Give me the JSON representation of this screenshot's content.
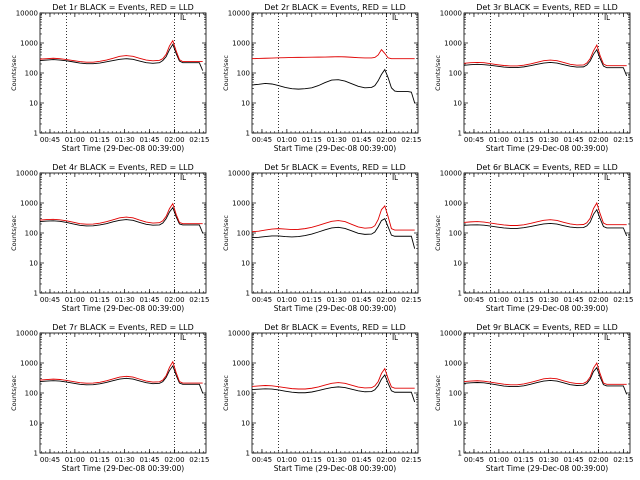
{
  "colors": {
    "events": "#000000",
    "lld": "#e00000",
    "axes": "#000000",
    "background": "#ffffff"
  },
  "common": {
    "ylabel": "Counts/sec",
    "xlabel": "Start Time (29-Dec-08 00:39:00)",
    "x_tick_labels": [
      "00:45",
      "01:00",
      "01:15",
      "01:30",
      "01:45",
      "02:00",
      "02:15"
    ],
    "x_ticks_min": [
      6,
      21,
      36,
      51,
      66,
      81,
      96
    ],
    "x_range_min": [
      0,
      100
    ],
    "y_tick_labels": [
      "1",
      "10",
      "100",
      "1000",
      "10000"
    ],
    "y_ticks": [
      1,
      10,
      100,
      1000,
      10000
    ],
    "y_range": [
      1,
      10000
    ],
    "y_scale": "log",
    "dotted_vlines_min": [
      16,
      81
    ],
    "marker_label": "L",
    "marker_min": 85
  },
  "chart_data": [
    {
      "type": "line",
      "title": "Det 1r BLACK = Events, RED = LLD",
      "x": [
        0,
        4,
        8,
        12,
        16,
        20,
        24,
        28,
        32,
        36,
        40,
        44,
        48,
        52,
        56,
        60,
        64,
        68,
        72,
        74,
        76,
        78,
        80,
        82,
        84,
        86,
        88,
        90,
        92,
        94,
        96,
        98
      ],
      "series": [
        {
          "values": [
            260,
            270,
            280,
            270,
            255,
            235,
            215,
            205,
            205,
            215,
            235,
            260,
            285,
            300,
            285,
            250,
            220,
            210,
            220,
            260,
            350,
            600,
            900,
            450,
            250,
            220,
            220,
            220,
            220,
            220,
            220,
            120
          ]
        },
        {
          "values": [
            290,
            300,
            310,
            300,
            280,
            260,
            240,
            230,
            230,
            245,
            270,
            310,
            360,
            380,
            360,
            310,
            270,
            255,
            265,
            300,
            420,
            800,
            1200,
            550,
            280,
            240,
            240,
            240,
            240,
            240,
            240,
            240
          ]
        }
      ]
    },
    {
      "type": "line",
      "title": "Det 2r BLACK = Events, RED = LLD",
      "x": [
        0,
        4,
        8,
        12,
        16,
        20,
        24,
        28,
        32,
        36,
        40,
        44,
        48,
        52,
        56,
        60,
        64,
        68,
        72,
        74,
        76,
        78,
        80,
        82,
        84,
        86,
        88,
        90,
        92,
        94,
        96,
        98
      ],
      "series": [
        {
          "values": [
            40,
            42,
            45,
            43,
            38,
            33,
            30,
            29,
            30,
            32,
            38,
            48,
            58,
            60,
            54,
            44,
            36,
            32,
            33,
            38,
            55,
            90,
            130,
            70,
            32,
            25,
            24,
            24,
            24,
            24,
            23,
            10
          ]
        },
        {
          "values": [
            300,
            305,
            310,
            315,
            320,
            325,
            330,
            332,
            334,
            336,
            338,
            340,
            345,
            350,
            345,
            335,
            325,
            318,
            318,
            330,
            400,
            600,
            450,
            320,
            300,
            300,
            300,
            300,
            300,
            300,
            300,
            300
          ]
        }
      ]
    },
    {
      "type": "line",
      "title": "Det 3r BLACK = Events, RED = LLD",
      "x": [
        0,
        4,
        8,
        12,
        16,
        20,
        24,
        28,
        32,
        36,
        40,
        44,
        48,
        52,
        56,
        60,
        64,
        68,
        72,
        74,
        76,
        78,
        80,
        82,
        84,
        86,
        88,
        90,
        92,
        94,
        96,
        98
      ],
      "series": [
        {
          "values": [
            180,
            190,
            195,
            190,
            180,
            168,
            158,
            152,
            152,
            160,
            175,
            195,
            215,
            225,
            215,
            190,
            168,
            158,
            160,
            185,
            250,
            420,
            600,
            300,
            170,
            150,
            150,
            150,
            150,
            150,
            150,
            80
          ]
        },
        {
          "values": [
            210,
            220,
            225,
            220,
            205,
            190,
            178,
            172,
            172,
            182,
            200,
            228,
            258,
            270,
            258,
            225,
            195,
            182,
            185,
            215,
            300,
            550,
            850,
            380,
            200,
            175,
            175,
            175,
            175,
            175,
            175,
            175
          ]
        }
      ]
    },
    {
      "type": "line",
      "title": "Det 4r BLACK = Events, RED = LLD",
      "x": [
        0,
        4,
        8,
        12,
        16,
        20,
        24,
        28,
        32,
        36,
        40,
        44,
        48,
        52,
        56,
        60,
        64,
        68,
        72,
        74,
        76,
        78,
        80,
        82,
        84,
        86,
        88,
        90,
        92,
        94,
        96,
        98
      ],
      "series": [
        {
          "values": [
            240,
            250,
            255,
            245,
            225,
            200,
            180,
            172,
            174,
            185,
            205,
            235,
            265,
            280,
            265,
            225,
            195,
            182,
            186,
            215,
            300,
            500,
            700,
            350,
            200,
            185,
            185,
            185,
            185,
            185,
            185,
            100
          ]
        },
        {
          "values": [
            270,
            280,
            285,
            275,
            255,
            230,
            205,
            196,
            198,
            212,
            238,
            275,
            320,
            340,
            320,
            270,
            232,
            215,
            220,
            255,
            360,
            650,
            950,
            420,
            225,
            205,
            205,
            205,
            205,
            205,
            205,
            205
          ]
        }
      ]
    },
    {
      "type": "line",
      "title": "Det 5r BLACK = Events, RED = LLD",
      "x": [
        0,
        4,
        8,
        12,
        16,
        20,
        24,
        28,
        32,
        36,
        40,
        44,
        48,
        52,
        56,
        60,
        64,
        68,
        72,
        74,
        76,
        78,
        80,
        82,
        84,
        86,
        88,
        90,
        92,
        94,
        96,
        98
      ],
      "series": [
        {
          "values": [
            70,
            72,
            76,
            80,
            80,
            76,
            74,
            76,
            82,
            92,
            108,
            128,
            148,
            155,
            142,
            118,
            98,
            90,
            92,
            108,
            160,
            260,
            300,
            160,
            85,
            78,
            78,
            78,
            78,
            78,
            78,
            30
          ]
        },
        {
          "values": [
            110,
            115,
            125,
            135,
            140,
            135,
            130,
            132,
            140,
            155,
            178,
            210,
            245,
            260,
            240,
            195,
            160,
            145,
            150,
            175,
            280,
            600,
            800,
            350,
            140,
            125,
            125,
            125,
            125,
            125,
            125,
            125
          ]
        }
      ]
    },
    {
      "type": "line",
      "title": "Det 6r BLACK = Events, RED = LLD",
      "x": [
        0,
        4,
        8,
        12,
        16,
        20,
        24,
        28,
        32,
        36,
        40,
        44,
        48,
        52,
        56,
        60,
        64,
        68,
        72,
        74,
        76,
        78,
        80,
        82,
        84,
        86,
        88,
        90,
        92,
        94,
        96,
        98
      ],
      "series": [
        {
          "values": [
            180,
            185,
            188,
            182,
            170,
            158,
            148,
            142,
            142,
            150,
            164,
            182,
            200,
            208,
            198,
            176,
            158,
            150,
            152,
            172,
            230,
            420,
            600,
            300,
            165,
            148,
            148,
            148,
            148,
            148,
            148,
            80
          ]
        },
        {
          "values": [
            225,
            235,
            240,
            232,
            215,
            198,
            185,
            178,
            178,
            188,
            208,
            235,
            265,
            278,
            262,
            228,
            200,
            188,
            192,
            220,
            310,
            650,
            1000,
            440,
            215,
            190,
            190,
            190,
            190,
            190,
            190,
            190
          ]
        }
      ]
    },
    {
      "type": "line",
      "title": "Det 7r BLACK = Events, RED = LLD",
      "x": [
        0,
        4,
        8,
        12,
        16,
        20,
        24,
        28,
        32,
        36,
        40,
        44,
        48,
        52,
        56,
        60,
        64,
        68,
        72,
        74,
        76,
        78,
        80,
        82,
        84,
        86,
        88,
        90,
        92,
        94,
        96,
        98
      ],
      "series": [
        {
          "values": [
            240,
            250,
            258,
            250,
            232,
            212,
            195,
            188,
            190,
            202,
            225,
            258,
            292,
            308,
            292,
            252,
            220,
            205,
            210,
            240,
            330,
            560,
            800,
            390,
            215,
            195,
            195,
            195,
            195,
            195,
            195,
            100
          ]
        },
        {
          "values": [
            270,
            280,
            290,
            282,
            262,
            240,
            220,
            212,
            214,
            228,
            255,
            295,
            340,
            360,
            340,
            290,
            250,
            232,
            236,
            270,
            380,
            720,
            1100,
            480,
            240,
            215,
            215,
            215,
            215,
            215,
            215,
            215
          ]
        }
      ]
    },
    {
      "type": "line",
      "title": "Det 8r BLACK = Events, RED = LLD",
      "x": [
        0,
        4,
        8,
        12,
        16,
        20,
        24,
        28,
        32,
        36,
        40,
        44,
        48,
        52,
        56,
        60,
        64,
        68,
        72,
        74,
        76,
        78,
        80,
        82,
        84,
        86,
        88,
        90,
        92,
        94,
        96,
        98
      ],
      "series": [
        {
          "values": [
            130,
            134,
            138,
            135,
            126,
            115,
            106,
            102,
            102,
            108,
            120,
            136,
            152,
            160,
            152,
            134,
            118,
            110,
            112,
            128,
            175,
            290,
            400,
            210,
            118,
            106,
            106,
            106,
            106,
            106,
            106,
            50
          ]
        },
        {
          "values": [
            165,
            172,
            178,
            174,
            162,
            150,
            140,
            136,
            136,
            144,
            160,
            184,
            210,
            222,
            210,
            182,
            158,
            148,
            150,
            172,
            240,
            450,
            650,
            300,
            160,
            145,
            145,
            145,
            145,
            145,
            145,
            145
          ]
        }
      ]
    },
    {
      "type": "line",
      "title": "Det 9r BLACK = Events, RED = LLD",
      "x": [
        0,
        4,
        8,
        12,
        16,
        20,
        24,
        28,
        32,
        36,
        40,
        44,
        48,
        52,
        56,
        60,
        64,
        68,
        72,
        74,
        76,
        78,
        80,
        82,
        84,
        86,
        88,
        90,
        92,
        94,
        96,
        98
      ],
      "series": [
        {
          "values": [
            210,
            218,
            224,
            218,
            202,
            185,
            170,
            164,
            164,
            174,
            194,
            222,
            250,
            262,
            250,
            218,
            190,
            178,
            182,
            208,
            290,
            520,
            700,
            340,
            190,
            172,
            172,
            172,
            172,
            172,
            172,
            90
          ]
        },
        {
          "values": [
            240,
            250,
            256,
            248,
            230,
            212,
            196,
            188,
            188,
            200,
            224,
            258,
            296,
            312,
            296,
            255,
            222,
            206,
            210,
            240,
            340,
            680,
            1000,
            440,
            215,
            195,
            195,
            195,
            195,
            195,
            195,
            195
          ]
        }
      ]
    }
  ]
}
